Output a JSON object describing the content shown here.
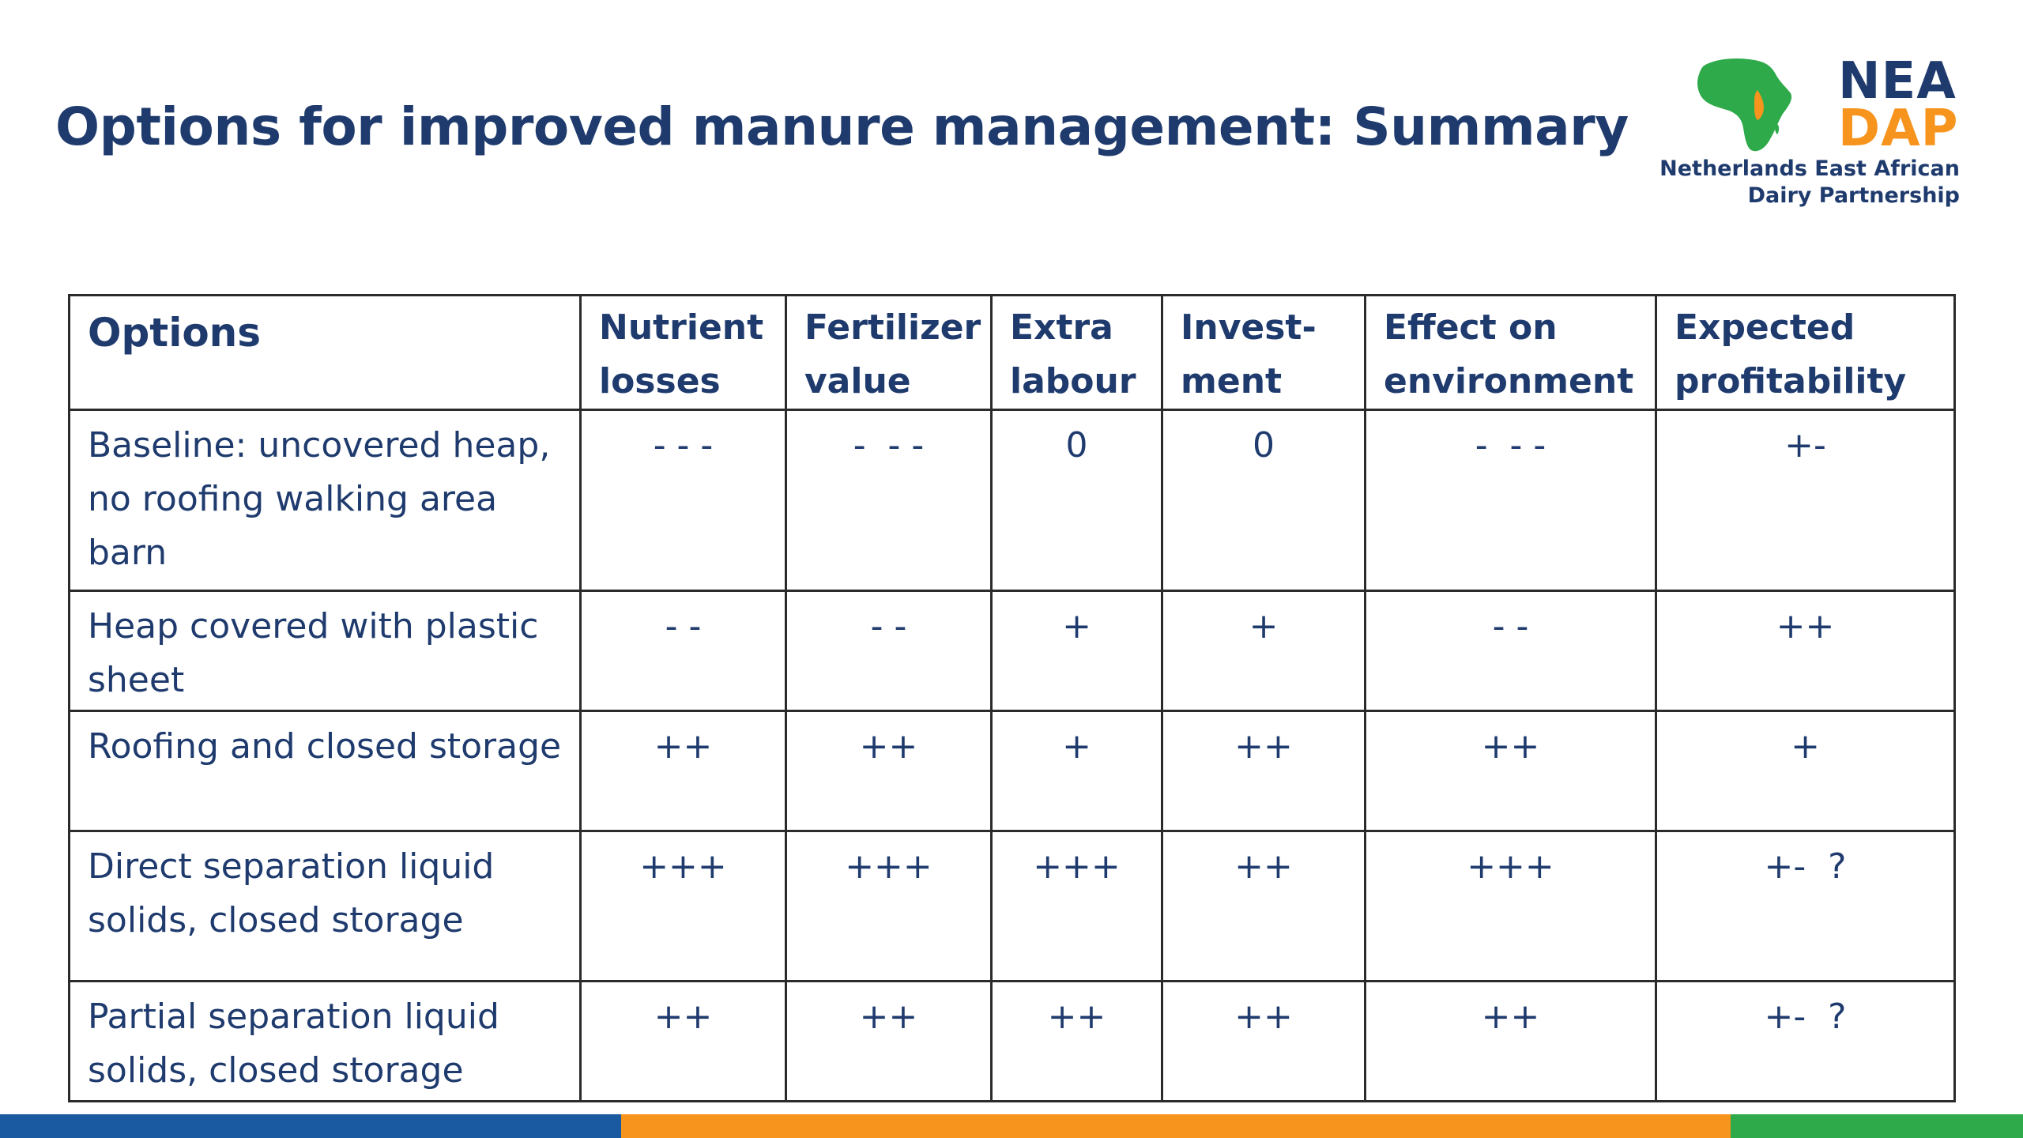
{
  "slide": {
    "title": "Options for improved manure management: Summary"
  },
  "logo": {
    "line1": "NEA",
    "line2": "DAP",
    "subtitle_line1": "Netherlands East African",
    "subtitle_line2": "Dairy Partnership",
    "colors": {
      "green": "#2eaa4a",
      "orange": "#f7941d",
      "blue": "#1f3b6e"
    }
  },
  "table": {
    "headers": [
      [
        "Options"
      ],
      [
        "Nutrient",
        "losses"
      ],
      [
        "Fertilizer",
        "value"
      ],
      [
        "Extra",
        "labour"
      ],
      [
        "Invest-",
        "ment"
      ],
      [
        "Effect on",
        "environment"
      ],
      [
        "Expected",
        "profitability"
      ]
    ],
    "rows": [
      {
        "option": [
          "Baseline: uncovered heap,",
          "no roofing walking area",
          "barn"
        ],
        "values": [
          "- - -",
          "-  - -",
          "0",
          "0",
          "-  - -",
          "+-"
        ]
      },
      {
        "option": [
          "Heap covered with plastic",
          "sheet"
        ],
        "values": [
          "- -",
          "- -",
          "+",
          "+",
          "- -",
          "++"
        ]
      },
      {
        "option": [
          "Roofing and closed storage"
        ],
        "values": [
          "++",
          "++",
          "+",
          "++",
          "++",
          "+"
        ]
      },
      {
        "option": [
          "Direct separation liquid",
          "solids, closed storage"
        ],
        "values": [
          "+++",
          "+++",
          "+++",
          "++",
          "+++",
          "+-  ?"
        ]
      },
      {
        "option": [
          "Partial separation liquid",
          "solids, closed storage"
        ],
        "values": [
          "++",
          "++",
          "++",
          "++",
          "++",
          "+-  ?"
        ]
      }
    ]
  },
  "colors": {
    "title_text": "#1f3b6e",
    "footer_blue": "#1a5aa0",
    "footer_orange": "#f7941d",
    "footer_green": "#2eaa4a"
  }
}
